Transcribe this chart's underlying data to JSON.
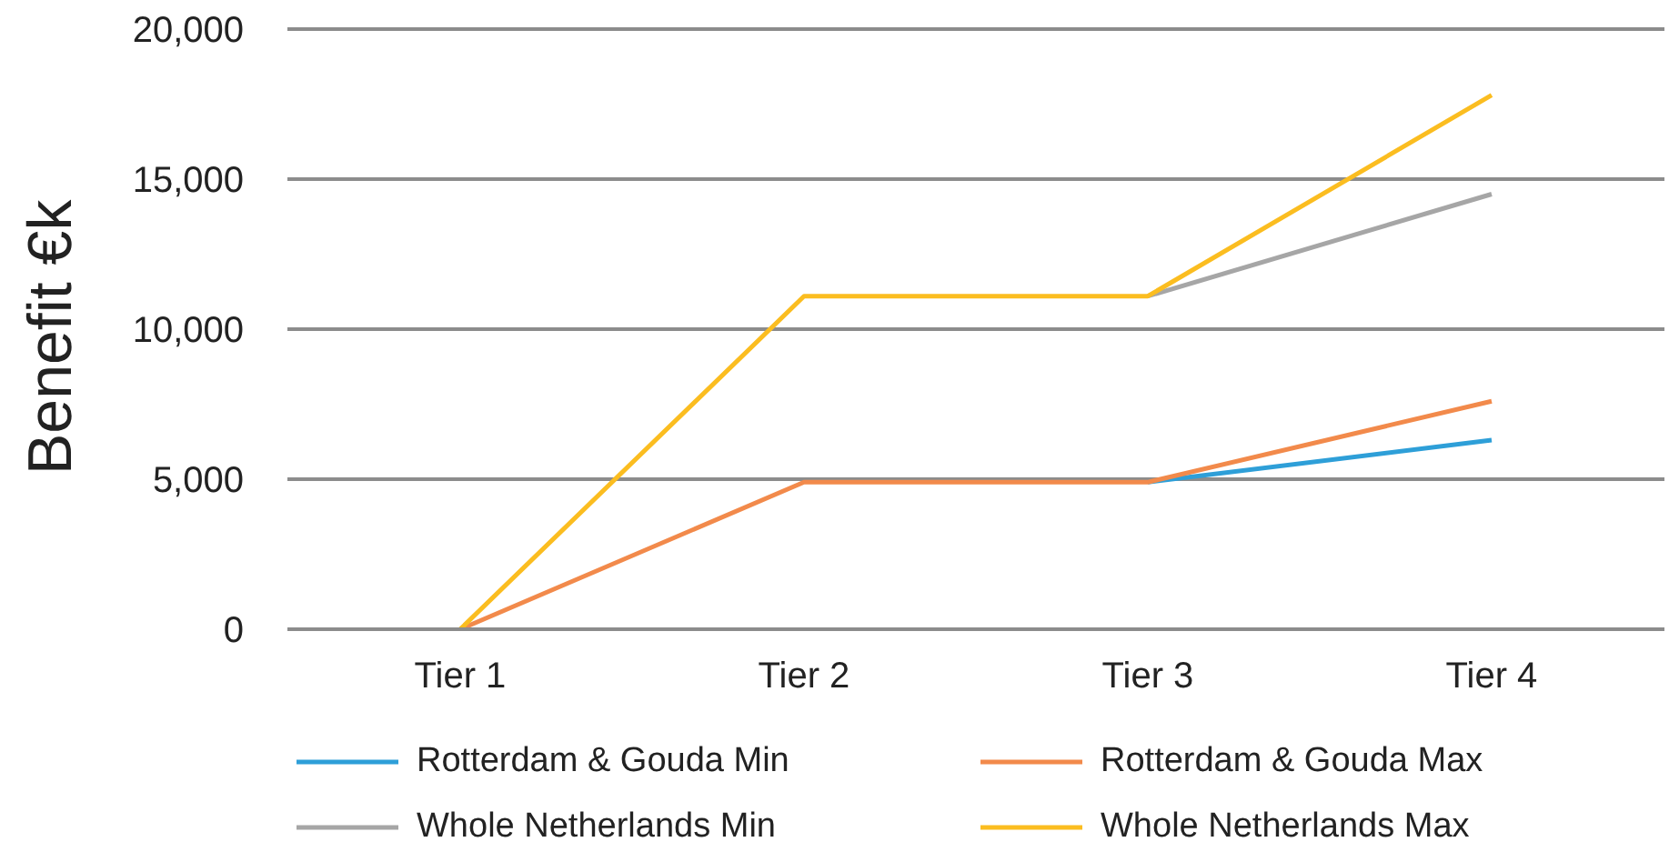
{
  "chart_data": {
    "type": "line",
    "ylabel": "Benefit €k",
    "categories": [
      "Tier 1",
      "Tier 2",
      "Tier 3",
      "Tier 4"
    ],
    "series": [
      {
        "name": "Rotterdam & Gouda Min",
        "color": "#2e9fd8",
        "values": [
          null,
          null,
          4900,
          6300
        ]
      },
      {
        "name": "Rotterdam & Gouda Max",
        "color": "#f28a4b",
        "values": [
          0,
          4900,
          4900,
          7600
        ]
      },
      {
        "name": "Whole Netherlands Min",
        "color": "#a6a6a6",
        "values": [
          null,
          null,
          11100,
          14500
        ]
      },
      {
        "name": "Whole Netherlands Max",
        "color": "#fbbd20",
        "values": [
          0,
          11100,
          11100,
          17800
        ]
      }
    ],
    "ylim": [
      0,
      20000
    ],
    "yticks": [
      {
        "value": 0,
        "label": "0"
      },
      {
        "value": 5000,
        "label": "5,000"
      },
      {
        "value": 10000,
        "label": "10,000"
      },
      {
        "value": 15000,
        "label": "15,000"
      },
      {
        "value": 20000,
        "label": "20,000"
      }
    ],
    "grid": "y",
    "legend": "bottom",
    "marker": "none",
    "line_style": "solid"
  }
}
